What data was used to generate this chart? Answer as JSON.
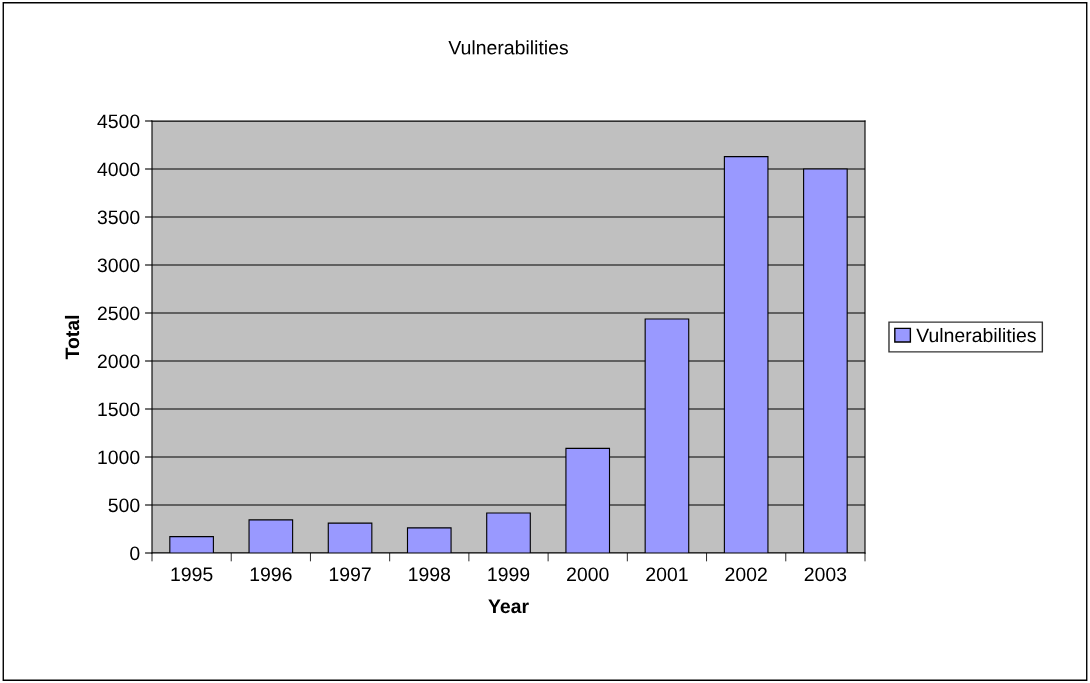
{
  "chart_data": {
    "type": "bar",
    "title": "Vulnerabilities",
    "xlabel": "Year",
    "ylabel": "Total",
    "categories": [
      "1995",
      "1996",
      "1997",
      "1998",
      "1999",
      "2000",
      "2001",
      "2002",
      "2003"
    ],
    "series": [
      {
        "name": "Vulnerabilities",
        "color": "#9999ff",
        "values": [
          171,
          345,
          311,
          262,
          417,
          1090,
          2437,
          4129,
          4000
        ]
      }
    ],
    "ylim": [
      0,
      4500
    ],
    "yticks": [
      0,
      500,
      1000,
      1500,
      2000,
      2500,
      3000,
      3500,
      4000,
      4500
    ],
    "grid": "y",
    "legend": "right"
  }
}
